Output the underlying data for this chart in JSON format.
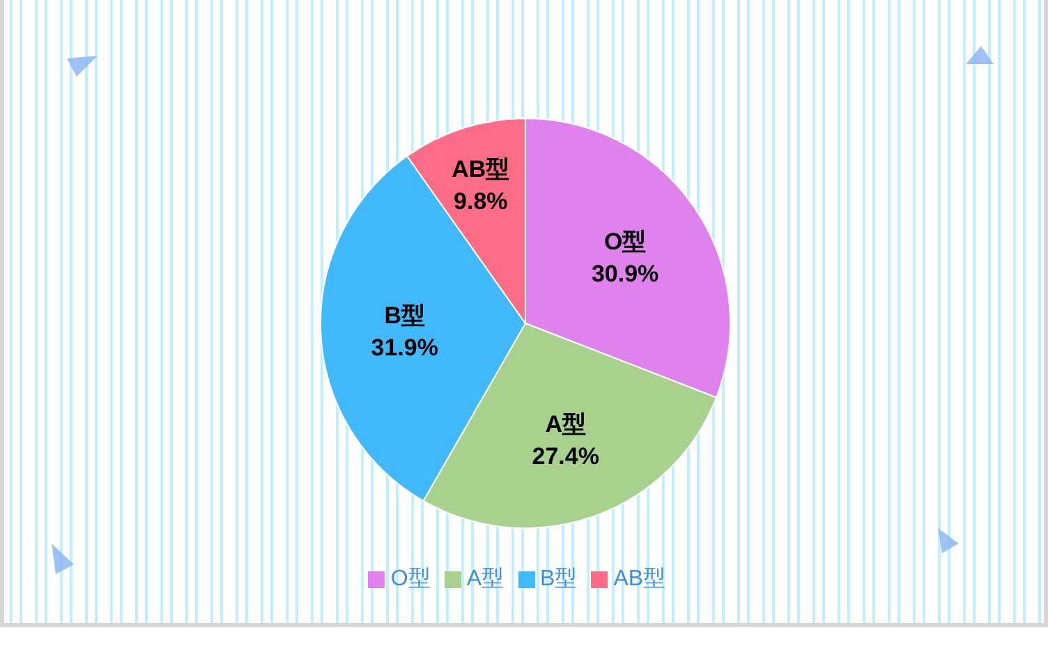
{
  "chart_data": {
    "type": "pie",
    "categories": [
      "O型",
      "A型",
      "B型",
      "AB型"
    ],
    "values": [
      30.9,
      27.4,
      31.9,
      9.8
    ],
    "colors": [
      "#df82ee",
      "#a9d18e",
      "#43b9fd",
      "#fe6d88"
    ],
    "value_labels": [
      "30.9%",
      "27.4%",
      "31.9%",
      "9.8%"
    ],
    "legend": "bottom"
  }
}
